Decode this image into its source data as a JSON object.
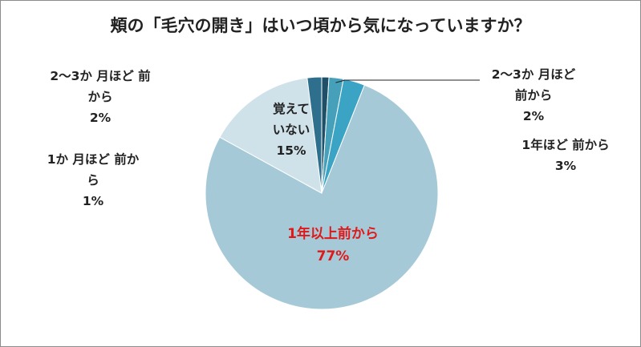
{
  "chart_data": {
    "type": "pie",
    "title": "頬の「毛穴の開き」はいつ頃から気になっていますか？",
    "slices": [
      {
        "label_lines": [
          "2〜3か 月ほど",
          "前から"
        ],
        "value": 2,
        "value_label": "2%",
        "color": "#2e6f8e"
      },
      {
        "label_lines": [
          "1年ほど 前から"
        ],
        "value": 3,
        "value_label": "3%",
        "color": "#3ba3c4"
      },
      {
        "label_lines": [
          "1年以上前から"
        ],
        "value": 77,
        "value_label": "77%",
        "color": "#a6c9d8",
        "highlight_color": "#e01818"
      },
      {
        "label_lines": [
          "覚えて",
          "いない"
        ],
        "value": 15,
        "value_label": "15%",
        "color": "#cfe2ea"
      },
      {
        "label_lines": [
          "1か 月ほど 前か",
          "ら"
        ],
        "value": 1,
        "value_label": "1%",
        "color": "#1f5068"
      },
      {
        "label_lines": [
          "2〜3か 月ほど 前",
          "から"
        ],
        "value": 2,
        "value_label": "2%",
        "color": "#46a0ba"
      }
    ]
  }
}
